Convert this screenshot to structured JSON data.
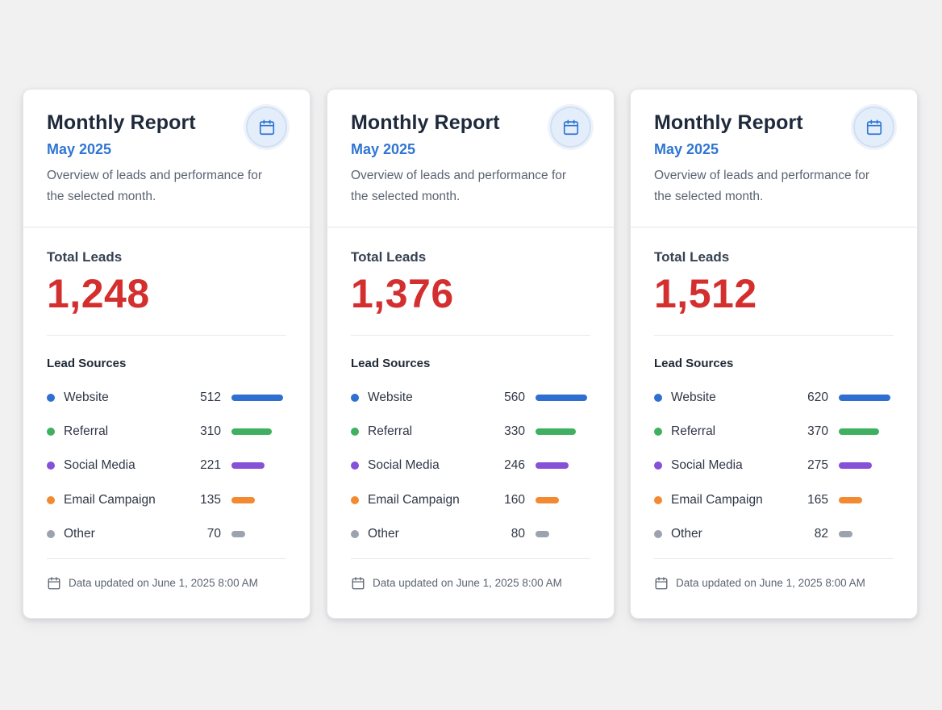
{
  "cards": [
    {
      "title": "Monthly Report",
      "month": "May 2025",
      "description": "Overview of leads and performance for the selected month.",
      "total_label": "Total Leads",
      "total_value": "1,248",
      "sources_title": "Lead Sources",
      "sources": [
        {
          "name": "Website",
          "count": "512",
          "share": 1.0,
          "color": "#2f6fd0"
        },
        {
          "name": "Referral",
          "count": "310",
          "share": 0.78,
          "color": "#3fb060"
        },
        {
          "name": "Social Media",
          "count": "221",
          "share": 0.64,
          "color": "#8750d8"
        },
        {
          "name": "Email Campaign",
          "count": "135",
          "share": 0.45,
          "color": "#f38930"
        },
        {
          "name": "Other",
          "count": "70",
          "share": 0.26,
          "color": "#9ca3af"
        }
      ],
      "footer_text": "Data updated on June 1, 2025 8:00 AM",
      "icon": "calendar-icon"
    },
    {
      "title": "Monthly Report",
      "month": "May 2025",
      "description": "Overview of leads and performance for the selected month.",
      "total_label": "Total Leads",
      "total_value": "1,376",
      "sources_title": "Lead Sources",
      "sources": [
        {
          "name": "Website",
          "count": "560",
          "share": 1.0,
          "color": "#2f6fd0"
        },
        {
          "name": "Referral",
          "count": "330",
          "share": 0.78,
          "color": "#3fb060"
        },
        {
          "name": "Social Media",
          "count": "246",
          "share": 0.64,
          "color": "#8750d8"
        },
        {
          "name": "Email Campaign",
          "count": "160",
          "share": 0.45,
          "color": "#f38930"
        },
        {
          "name": "Other",
          "count": "80",
          "share": 0.26,
          "color": "#9ca3af"
        }
      ],
      "footer_text": "Data updated on June 1, 2025 8:00 AM",
      "icon": "calendar-icon"
    },
    {
      "title": "Monthly Report",
      "month": "May 2025",
      "description": "Overview of leads and performance for the selected month.",
      "total_label": "Total Leads",
      "total_value": "1,512",
      "sources_title": "Lead Sources",
      "sources": [
        {
          "name": "Website",
          "count": "620",
          "share": 1.0,
          "color": "#2f6fd0"
        },
        {
          "name": "Referral",
          "count": "370",
          "share": 0.78,
          "color": "#3fb060"
        },
        {
          "name": "Social Media",
          "count": "275",
          "share": 0.64,
          "color": "#8750d8"
        },
        {
          "name": "Email Campaign",
          "count": "165",
          "share": 0.45,
          "color": "#f38930"
        },
        {
          "name": "Other",
          "count": "82",
          "share": 0.26,
          "color": "#9ca3af"
        }
      ],
      "footer_text": "Data updated on June 1, 2025 8:00 AM",
      "icon": "calendar-icon"
    }
  ],
  "colors": {
    "accent": "#2f75d3",
    "total_value": "#d42f2f",
    "background": "#f1f1f2"
  }
}
